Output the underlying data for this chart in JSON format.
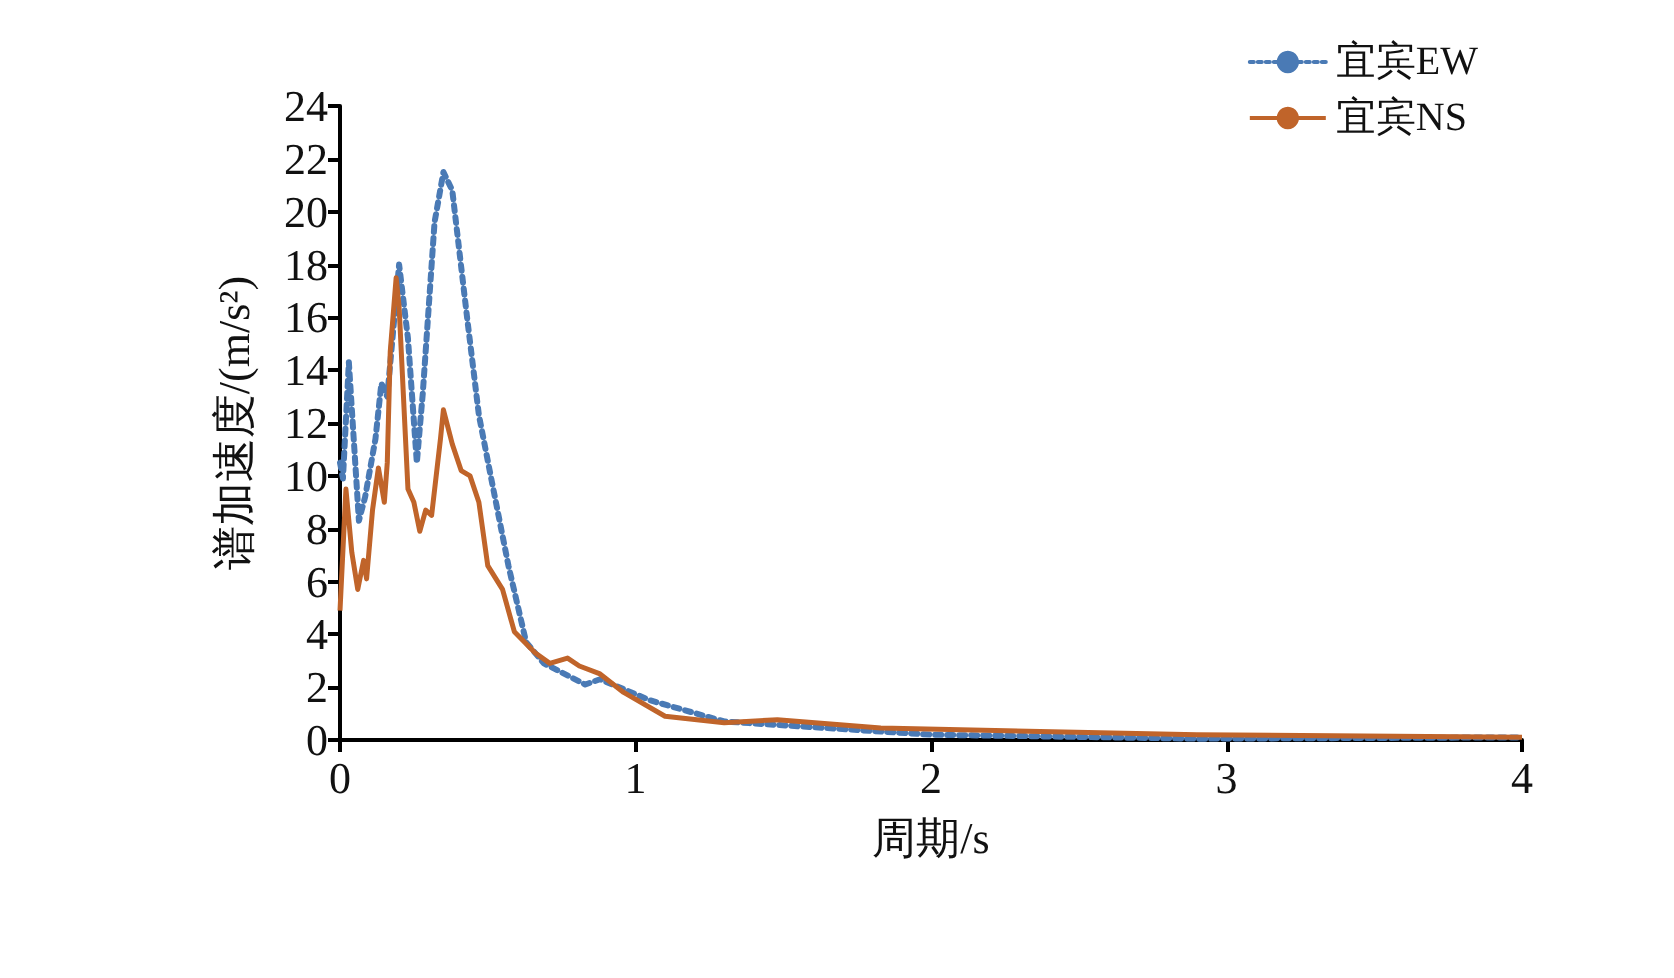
{
  "chart_data": {
    "type": "line",
    "xlabel": "周期/s",
    "ylabel": "谱加速度/(m/s²)",
    "xlim": [
      0,
      4
    ],
    "xticks": [
      0,
      1,
      2,
      3,
      4
    ],
    "ylim": [
      0,
      24
    ],
    "yticks": [
      0,
      2,
      4,
      6,
      8,
      10,
      12,
      14,
      16,
      18,
      20,
      22,
      24
    ],
    "legend": "top right",
    "series": [
      {
        "name": "宜宾EW",
        "color": "#4a7ab5",
        "line_style": "dotted",
        "x": [
          0,
          0.01,
          0.03,
          0.064,
          0.085,
          0.12,
          0.14,
          0.16,
          0.2,
          0.23,
          0.26,
          0.28,
          0.32,
          0.35,
          0.38,
          0.43,
          0.47,
          0.51,
          0.57,
          0.63,
          0.69,
          0.83,
          0.88,
          1.05,
          1.3,
          2.0,
          2.9,
          4
        ],
        "values": [
          10.5,
          9.9,
          14.3,
          8.3,
          9.2,
          11.4,
          13.5,
          13,
          18,
          15.2,
          10.5,
          13.1,
          19.6,
          21.5,
          20.8,
          16,
          12.3,
          10,
          6.6,
          3.7,
          2.9,
          2.1,
          2.3,
          1.5,
          0.7,
          0.2,
          0.05,
          0.1
        ]
      },
      {
        "name": "宜宾NS",
        "color": "#c0642a",
        "line_style": "solid",
        "x": [
          0,
          0.02,
          0.04,
          0.06,
          0.08,
          0.09,
          0.11,
          0.13,
          0.15,
          0.16,
          0.17,
          0.19,
          0.2,
          0.23,
          0.25,
          0.27,
          0.29,
          0.31,
          0.34,
          0.35,
          0.38,
          0.41,
          0.44,
          0.47,
          0.5,
          0.55,
          0.59,
          0.66,
          0.71,
          0.77,
          0.81,
          0.88,
          0.96,
          1.1,
          1.3,
          1.48,
          1.83,
          2.9,
          4
        ],
        "values": [
          4.9,
          9.5,
          7.1,
          5.7,
          6.8,
          6.1,
          8.7,
          10.3,
          9,
          10.5,
          14.7,
          17.5,
          16.4,
          9.5,
          9,
          7.9,
          8.7,
          8.5,
          11.4,
          12.5,
          11.2,
          10.2,
          10,
          9,
          6.6,
          5.7,
          4.1,
          3.3,
          2.9,
          3.1,
          2.8,
          2.5,
          1.8,
          0.9,
          0.65,
          0.77,
          0.45,
          0.2,
          0.1
        ]
      }
    ]
  }
}
